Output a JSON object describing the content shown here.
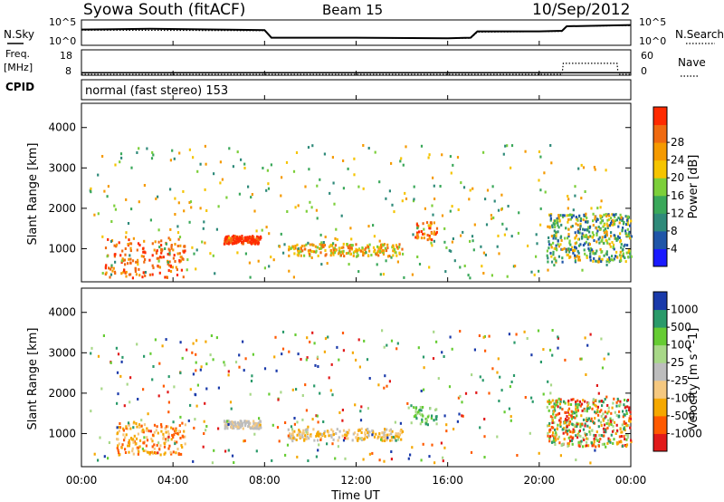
{
  "header": {
    "title": "Syowa South (fitACF)",
    "beam": "Beam 15",
    "date": "10/Sep/2012"
  },
  "side_labels": {
    "nsky": "N.Sky",
    "freq": "Freq.",
    "freq_unit": "[MHz]",
    "cpid": "CPID",
    "nsearch": "N.Search",
    "nave": "Nave"
  },
  "noise_panel": {
    "left_ticks": [
      "10^5",
      "10^0"
    ],
    "right_ticks": [
      "10^5",
      "10^0"
    ]
  },
  "freq_panel": {
    "left_ticks": [
      "18",
      "8"
    ],
    "right_ticks": [
      "60",
      "0"
    ]
  },
  "cpid_text": "normal (fast stereo) 153",
  "xaxis": {
    "label": "Time UT",
    "ticks": [
      "00:00",
      "04:00",
      "08:00",
      "12:00",
      "16:00",
      "20:00",
      "00:00"
    ]
  },
  "colors": {
    "power_scale": [
      "#1a1aff",
      "#1f55a8",
      "#2f8a7a",
      "#3aa85a",
      "#7ccf3a",
      "#f5c400",
      "#f59a00",
      "#f06a10",
      "#ff2a00"
    ],
    "velocity_scale": [
      "#e11a1a",
      "#ff5a00",
      "#f5a800",
      "#f5c880",
      "#bdbdbd",
      "#a8d888",
      "#66cc33",
      "#2a9a6a",
      "#1a3aaa"
    ]
  },
  "chart_data": [
    {
      "type": "line",
      "name": "noise",
      "x_range_hours": [
        0,
        24
      ],
      "series": [
        {
          "name": "N.Sky",
          "style": "solid",
          "x": [
            0,
            3,
            6,
            8,
            8.3,
            12,
            16,
            17,
            17.3,
            20,
            21,
            21.2,
            24
          ],
          "y": [
            0.62,
            0.65,
            0.62,
            0.6,
            0.3,
            0.3,
            0.28,
            0.3,
            0.55,
            0.55,
            0.57,
            0.75,
            0.8
          ]
        },
        {
          "name": "N.Search",
          "style": "dotted",
          "x": [
            0,
            8,
            8.3,
            17,
            17.3,
            21,
            21.2,
            24
          ],
          "y": [
            0.6,
            0.58,
            0.3,
            0.28,
            0.52,
            0.55,
            0.75,
            0.78
          ]
        }
      ]
    },
    {
      "type": "line",
      "name": "frequency",
      "x_range_hours": [
        0,
        24
      ],
      "series": [
        {
          "name": "Freq.",
          "style": "solid",
          "x": [
            0,
            24
          ],
          "y": [
            9,
            9
          ]
        },
        {
          "name": "Nave",
          "style": "dotted",
          "x": [
            0,
            21,
            21.05,
            23.4,
            23.45,
            24
          ],
          "y": [
            2,
            2,
            28,
            28,
            2,
            2
          ]
        }
      ]
    },
    {
      "type": "scatter",
      "name": "power",
      "ylabel": "Slant Range [km]",
      "y_ticks": [
        1000,
        2000,
        3000,
        4000
      ],
      "ylim": [
        180,
        4600
      ],
      "colorbar_label": "Power [dB]",
      "colorbar_ticks": [
        4,
        8,
        12,
        16,
        20,
        24,
        28
      ],
      "clusters": [
        {
          "t0": 1.0,
          "t1": 4.5,
          "r0": 300,
          "r1": 1300,
          "colors": [
            6,
            7,
            8,
            7
          ],
          "n": 160
        },
        {
          "t0": 6.2,
          "t1": 7.8,
          "r0": 1150,
          "r1": 1350,
          "colors": [
            8,
            7,
            8
          ],
          "n": 140
        },
        {
          "t0": 9.0,
          "t1": 14.0,
          "r0": 850,
          "r1": 1150,
          "colors": [
            6,
            5,
            7,
            4
          ],
          "n": 200
        },
        {
          "t0": 14.5,
          "t1": 15.5,
          "r0": 1250,
          "r1": 1700,
          "colors": [
            6,
            7,
            8
          ],
          "n": 40
        },
        {
          "t0": 20.3,
          "t1": 24.0,
          "r0": 700,
          "r1": 1900,
          "colors": [
            1,
            2,
            3,
            4,
            5,
            6
          ],
          "n": 420
        },
        {
          "t0": 0.3,
          "t1": 23.0,
          "r0": 300,
          "r1": 3600,
          "colors": [
            2,
            3,
            4,
            5,
            6
          ],
          "n": 380
        }
      ]
    },
    {
      "type": "scatter",
      "name": "velocity",
      "ylabel": "Slant Range [km]",
      "y_ticks": [
        1000,
        2000,
        3000,
        4000
      ],
      "ylim": [
        180,
        4600
      ],
      "colorbar_label": "Velocity [m s^-1]",
      "colorbar_ticks": [
        1000,
        500,
        100,
        25,
        -25,
        -100,
        -500,
        -1000
      ],
      "clusters": [
        {
          "t0": 1.5,
          "t1": 4.5,
          "r0": 500,
          "r1": 1300,
          "colors": [
            1,
            2,
            3
          ],
          "n": 170
        },
        {
          "t0": 6.2,
          "t1": 7.8,
          "r0": 1150,
          "r1": 1350,
          "colors": [
            3,
            4,
            4
          ],
          "n": 110
        },
        {
          "t0": 9.0,
          "t1": 14.0,
          "r0": 850,
          "r1": 1150,
          "colors": [
            3,
            4,
            2
          ],
          "n": 180
        },
        {
          "t0": 14.5,
          "t1": 15.5,
          "r0": 1250,
          "r1": 1700,
          "colors": [
            5,
            6,
            7
          ],
          "n": 40
        },
        {
          "t0": 20.3,
          "t1": 24.0,
          "r0": 700,
          "r1": 1900,
          "colors": [
            1,
            2,
            5,
            6,
            7,
            0
          ],
          "n": 420
        },
        {
          "t0": 0.3,
          "t1": 23.0,
          "r0": 300,
          "r1": 3600,
          "colors": [
            0,
            1,
            2,
            5,
            6,
            7,
            8
          ],
          "n": 380
        }
      ]
    }
  ]
}
